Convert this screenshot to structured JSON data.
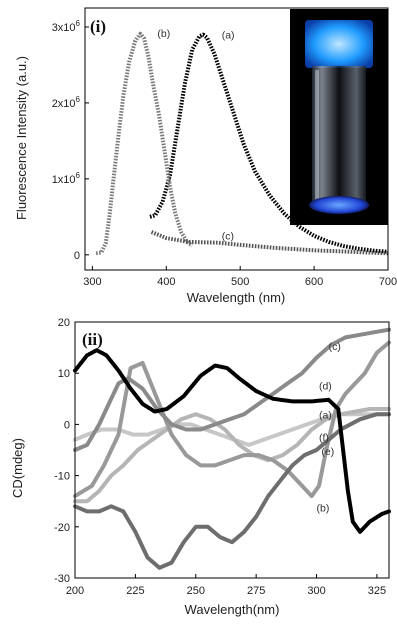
{
  "panels": {
    "top": {
      "label": "(i)",
      "ylabel": "Fluorescence Intensity (a.u.)",
      "xlabel": "Wavelength (nm)",
      "xticks": [
        "300",
        "400",
        "500",
        "600",
        "700"
      ],
      "xtick_values": [
        300,
        400,
        500,
        600,
        700
      ],
      "yticks": [
        "0",
        "1x10",
        "2x10",
        "3x10"
      ],
      "ytick_values": [
        0,
        1000000,
        2000000,
        3000000
      ],
      "ytick_exp": "6",
      "inset": "photo-vial-blue-fluorescence"
    },
    "bottom": {
      "label": "(ii)",
      "ylabel": "CD(mdeg)",
      "xlabel": "Wavelength(nm)",
      "xticks": [
        "200",
        "225",
        "250",
        "275",
        "300",
        "325"
      ],
      "xtick_values": [
        200,
        225,
        250,
        275,
        300,
        325
      ],
      "yticks": [
        "20",
        "10",
        "0",
        "-10",
        "-20",
        "-30"
      ],
      "ytick_values": [
        20,
        10,
        0,
        -10,
        -20,
        -30
      ]
    }
  },
  "chart_data": [
    {
      "type": "line",
      "xlim": [
        290,
        700
      ],
      "ylim": [
        -200000,
        3250000
      ],
      "series": [
        {
          "name": "(a)",
          "color": "#000000",
          "label_at": [
            475,
            2850000
          ],
          "x": [
            378,
            385,
            395,
            405,
            415,
            425,
            435,
            445,
            450,
            455,
            465,
            475,
            490,
            505,
            520,
            540,
            560,
            580,
            600,
            620,
            640,
            660,
            680,
            700
          ],
          "y": [
            500000,
            520000,
            700000,
            1050000,
            1650000,
            2250000,
            2700000,
            2880000,
            2900000,
            2860000,
            2650000,
            2350000,
            1900000,
            1450000,
            1100000,
            780000,
            540000,
            370000,
            250000,
            170000,
            115000,
            80000,
            55000,
            40000
          ]
        },
        {
          "name": "(b)",
          "color": "#7a7a7a",
          "label_at": [
            388,
            2870000
          ],
          "x": [
            305,
            312,
            318,
            323,
            328,
            335,
            342,
            350,
            358,
            365,
            370,
            376,
            382,
            390,
            398,
            405,
            412,
            420,
            428,
            435
          ],
          "y": [
            20000,
            30000,
            150000,
            500000,
            950000,
            1550000,
            2100000,
            2550000,
            2820000,
            2910000,
            2850000,
            2600000,
            2250000,
            1850000,
            1350000,
            900000,
            550000,
            300000,
            170000,
            120000
          ]
        },
        {
          "name": "(c)",
          "color": "#555555",
          "label_at": [
            475,
            200000
          ],
          "x": [
            380,
            400,
            430,
            470,
            500,
            550,
            600,
            650,
            700
          ],
          "y": [
            300000,
            220000,
            170000,
            160000,
            130000,
            90000,
            60000,
            40000,
            20000
          ]
        }
      ]
    },
    {
      "type": "line",
      "xlim": [
        200,
        330
      ],
      "ylim": [
        -30,
        20
      ],
      "series": [
        {
          "name": "(a)",
          "color": "#000000",
          "label_at": [
            301,
            1.2
          ],
          "x": [
            200,
            205,
            209,
            213,
            218,
            223,
            228,
            233,
            238,
            245,
            252,
            258,
            263,
            268,
            275,
            282,
            290,
            298,
            305,
            309,
            311,
            313,
            315,
            318,
            322,
            327,
            330
          ],
          "y": [
            10.5,
            13.5,
            14.5,
            13.5,
            10.5,
            7,
            4,
            2.5,
            3,
            5.5,
            9.5,
            11.5,
            11,
            9,
            6.5,
            5,
            4.5,
            4.5,
            4.8,
            3,
            -5,
            -13,
            -19,
            -21,
            -19,
            -17.5,
            -17
          ]
        },
        {
          "name": "(b)",
          "color": "#999999",
          "label_at": [
            300,
            -17
          ],
          "x": [
            200,
            207,
            212,
            218,
            223,
            228,
            234,
            240,
            246,
            252,
            258,
            264,
            270,
            276,
            282,
            288,
            294,
            298,
            301,
            304,
            308,
            312,
            316,
            320,
            325,
            330
          ],
          "y": [
            -14,
            -12,
            -8,
            -2,
            11,
            12,
            5,
            -2,
            -6,
            -8,
            -8,
            -7,
            -6,
            -6,
            -7,
            -9,
            -12,
            -14,
            -12,
            -5,
            3,
            6,
            8,
            10,
            14,
            16
          ]
        },
        {
          "name": "(c)",
          "color": "#8a8a8a",
          "label_at": [
            305,
            14.5
          ],
          "x": [
            200,
            205,
            210,
            214,
            218,
            222,
            228,
            234,
            240,
            246,
            252,
            258,
            264,
            270,
            276,
            282,
            288,
            294,
            300,
            306,
            312,
            318,
            324,
            330
          ],
          "y": [
            -5,
            -4,
            0,
            4,
            8,
            9,
            7,
            3,
            0,
            -1,
            -1,
            0,
            1,
            2,
            4,
            6,
            8,
            10,
            13,
            15.5,
            17,
            17.5,
            18,
            18.5
          ]
        },
        {
          "name": "(d)",
          "color": "#b5b5b5",
          "label_at": [
            301,
            6.8
          ],
          "x": [
            200,
            205,
            210,
            215,
            220,
            226,
            232,
            238,
            244,
            250,
            256,
            262,
            268,
            274,
            280,
            286,
            292,
            298,
            304,
            310,
            316,
            322,
            330
          ],
          "y": [
            -15,
            -15,
            -13,
            -10,
            -8,
            -5,
            -3,
            -1,
            1,
            2,
            1,
            -1,
            -4,
            -6,
            -7,
            -6,
            -4,
            -1,
            1,
            2,
            2.5,
            3,
            3
          ]
        },
        {
          "name": "(e)",
          "color": "#c7c7c7",
          "label_at": [
            302,
            -6
          ],
          "x": [
            200,
            205,
            211,
            218,
            224,
            230,
            236,
            242,
            248,
            254,
            260,
            266,
            272,
            278,
            284,
            290,
            296,
            302,
            308,
            314,
            320,
            326,
            330
          ],
          "y": [
            -3,
            -2,
            -1,
            -1,
            -2,
            -2,
            -1,
            0,
            0,
            -1,
            -2,
            -3,
            -4,
            -3,
            -2,
            -1,
            0,
            1,
            2,
            2,
            2,
            2,
            2
          ]
        },
        {
          "name": "(f)",
          "color": "#6e6e6e",
          "label_at": [
            301,
            -3.2
          ],
          "x": [
            200,
            205,
            210,
            215,
            220,
            225,
            230,
            235,
            240,
            245,
            250,
            255,
            260,
            265,
            270,
            275,
            280,
            285,
            290,
            295,
            300,
            305,
            310,
            318,
            325,
            330
          ],
          "y": [
            -16,
            -17,
            -17,
            -16,
            -17,
            -21,
            -26,
            -28,
            -27,
            -23,
            -20,
            -20,
            -22,
            -23,
            -21,
            -18,
            -14,
            -11,
            -8,
            -6,
            -5,
            -3,
            -1,
            1,
            2,
            2
          ]
        }
      ]
    }
  ]
}
